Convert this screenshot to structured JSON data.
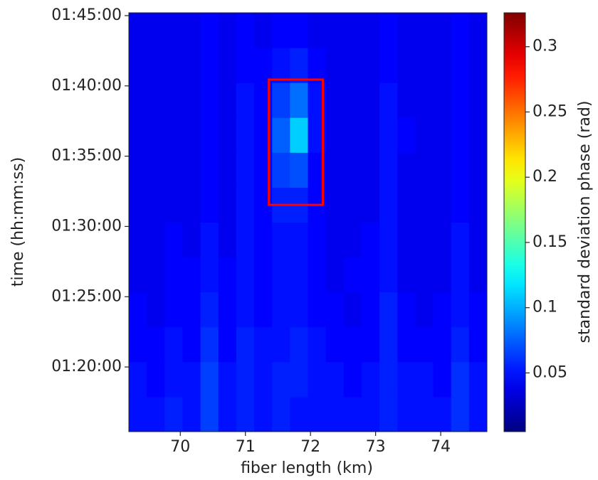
{
  "chart_data": {
    "type": "heatmap",
    "xlabel": "fiber length (km)",
    "ylabel": "time (hh:mm:ss)",
    "colorbar_label": "standard deviation phase (rad)",
    "colormap": "jet",
    "xlim": [
      69.21,
      74.71
    ],
    "xticks": [
      70,
      71,
      72,
      73,
      74
    ],
    "ylim": [
      4524,
      6312
    ],
    "yticks": [
      {
        "value": 4800,
        "label": "01:20:00"
      },
      {
        "value": 5100,
        "label": "01:25:00"
      },
      {
        "value": 5400,
        "label": "01:30:00"
      },
      {
        "value": 5700,
        "label": "01:35:00"
      },
      {
        "value": 6000,
        "label": "01:40:00"
      },
      {
        "value": 6300,
        "label": "01:45:00"
      }
    ],
    "clim": [
      0.005,
      0.326
    ],
    "cticks": [
      0.05,
      0.1,
      0.15,
      0.2,
      0.25,
      0.3
    ],
    "highlight": {
      "xlim": [
        71.36,
        72.19
      ],
      "ylim": [
        5492,
        6027
      ],
      "color": "#ff0000"
    },
    "values": [
      [
        0.05,
        0.05,
        0.055,
        0.05,
        0.065,
        0.05,
        0.055,
        0.05,
        0.055,
        0.05,
        0.05,
        0.05,
        0.05,
        0.05,
        0.055,
        0.05,
        0.05,
        0.05,
        0.06,
        0.05
      ],
      [
        0.05,
        0.045,
        0.05,
        0.05,
        0.065,
        0.05,
        0.055,
        0.05,
        0.055,
        0.055,
        0.05,
        0.05,
        0.045,
        0.05,
        0.055,
        0.05,
        0.05,
        0.045,
        0.06,
        0.05
      ],
      [
        0.045,
        0.045,
        0.05,
        0.045,
        0.06,
        0.045,
        0.055,
        0.05,
        0.05,
        0.055,
        0.05,
        0.045,
        0.045,
        0.045,
        0.055,
        0.045,
        0.045,
        0.045,
        0.055,
        0.045
      ],
      [
        0.045,
        0.04,
        0.045,
        0.045,
        0.055,
        0.045,
        0.05,
        0.045,
        0.05,
        0.05,
        0.045,
        0.045,
        0.04,
        0.045,
        0.055,
        0.045,
        0.04,
        0.045,
        0.05,
        0.045
      ],
      [
        0.04,
        0.04,
        0.045,
        0.045,
        0.05,
        0.045,
        0.05,
        0.045,
        0.05,
        0.05,
        0.045,
        0.04,
        0.045,
        0.045,
        0.05,
        0.04,
        0.04,
        0.04,
        0.05,
        0.04
      ],
      [
        0.04,
        0.04,
        0.045,
        0.04,
        0.05,
        0.04,
        0.05,
        0.045,
        0.05,
        0.05,
        0.045,
        0.04,
        0.04,
        0.045,
        0.05,
        0.04,
        0.04,
        0.04,
        0.05,
        0.04
      ],
      [
        0.04,
        0.04,
        0.04,
        0.04,
        0.045,
        0.04,
        0.05,
        0.045,
        0.055,
        0.055,
        0.045,
        0.04,
        0.04,
        0.04,
        0.05,
        0.04,
        0.04,
        0.04,
        0.045,
        0.04
      ],
      [
        0.04,
        0.04,
        0.04,
        0.04,
        0.045,
        0.04,
        0.05,
        0.045,
        0.065,
        0.07,
        0.045,
        0.04,
        0.04,
        0.04,
        0.05,
        0.04,
        0.04,
        0.04,
        0.045,
        0.04
      ],
      [
        0.04,
        0.04,
        0.04,
        0.04,
        0.045,
        0.04,
        0.05,
        0.045,
        0.075,
        0.11,
        0.05,
        0.04,
        0.04,
        0.04,
        0.05,
        0.045,
        0.04,
        0.04,
        0.045,
        0.04
      ],
      [
        0.04,
        0.04,
        0.04,
        0.04,
        0.045,
        0.04,
        0.05,
        0.045,
        0.065,
        0.08,
        0.05,
        0.04,
        0.04,
        0.04,
        0.05,
        0.04,
        0.04,
        0.04,
        0.045,
        0.04
      ],
      [
        0.04,
        0.04,
        0.04,
        0.04,
        0.045,
        0.04,
        0.045,
        0.045,
        0.05,
        0.055,
        0.045,
        0.04,
        0.04,
        0.04,
        0.045,
        0.04,
        0.04,
        0.04,
        0.045,
        0.04
      ],
      [
        0.04,
        0.04,
        0.04,
        0.04,
        0.045,
        0.04,
        0.045,
        0.04,
        0.045,
        0.045,
        0.04,
        0.04,
        0.04,
        0.04,
        0.045,
        0.04,
        0.04,
        0.04,
        0.045,
        0.04
      ]
    ]
  }
}
